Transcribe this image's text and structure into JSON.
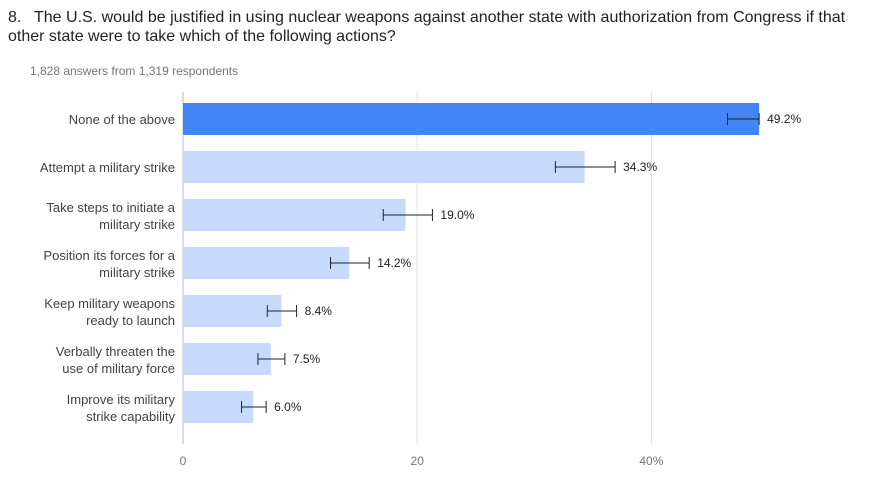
{
  "question": {
    "number": "8.",
    "title": "The U.S. would be justified in using nuclear weapons against another state with authorization from Congress if that other state were to take which of the following actions?",
    "summary": "1,828 answers from 1,319 respondents"
  },
  "chart_data": {
    "type": "bar",
    "orientation": "horizontal",
    "categories": [
      [
        "None of the above"
      ],
      [
        "Attempt a military strike"
      ],
      [
        "Take steps to initiate a",
        "military strike"
      ],
      [
        "Position its forces for a",
        "military strike"
      ],
      [
        "Keep military weapons",
        "ready to launch"
      ],
      [
        "Verbally threaten the",
        "use of military force"
      ],
      [
        "Improve its military",
        "strike capability"
      ]
    ],
    "values": [
      49.2,
      34.3,
      19.0,
      14.2,
      8.4,
      7.5,
      6.0
    ],
    "value_labels": [
      "49.2%",
      "34.3%",
      "19.0%",
      "14.2%",
      "8.4%",
      "7.5%",
      "6.0%"
    ],
    "error_bars": [
      [
        46.5,
        49.2
      ],
      [
        31.8,
        36.9
      ],
      [
        17.1,
        21.3
      ],
      [
        12.6,
        15.9
      ],
      [
        7.2,
        9.7
      ],
      [
        6.4,
        8.7
      ],
      [
        5.0,
        7.1
      ]
    ],
    "xlim": [
      0,
      60
    ],
    "xticks": [
      0,
      20,
      40
    ],
    "xtick_labels": [
      "0",
      "20",
      "40%"
    ],
    "grid": true,
    "colors": {
      "highlight": "#4285f4",
      "bar": "#c6dafc",
      "grid": "#e0e0e0",
      "axis": "#bdbdbd",
      "error": "#212121"
    }
  }
}
